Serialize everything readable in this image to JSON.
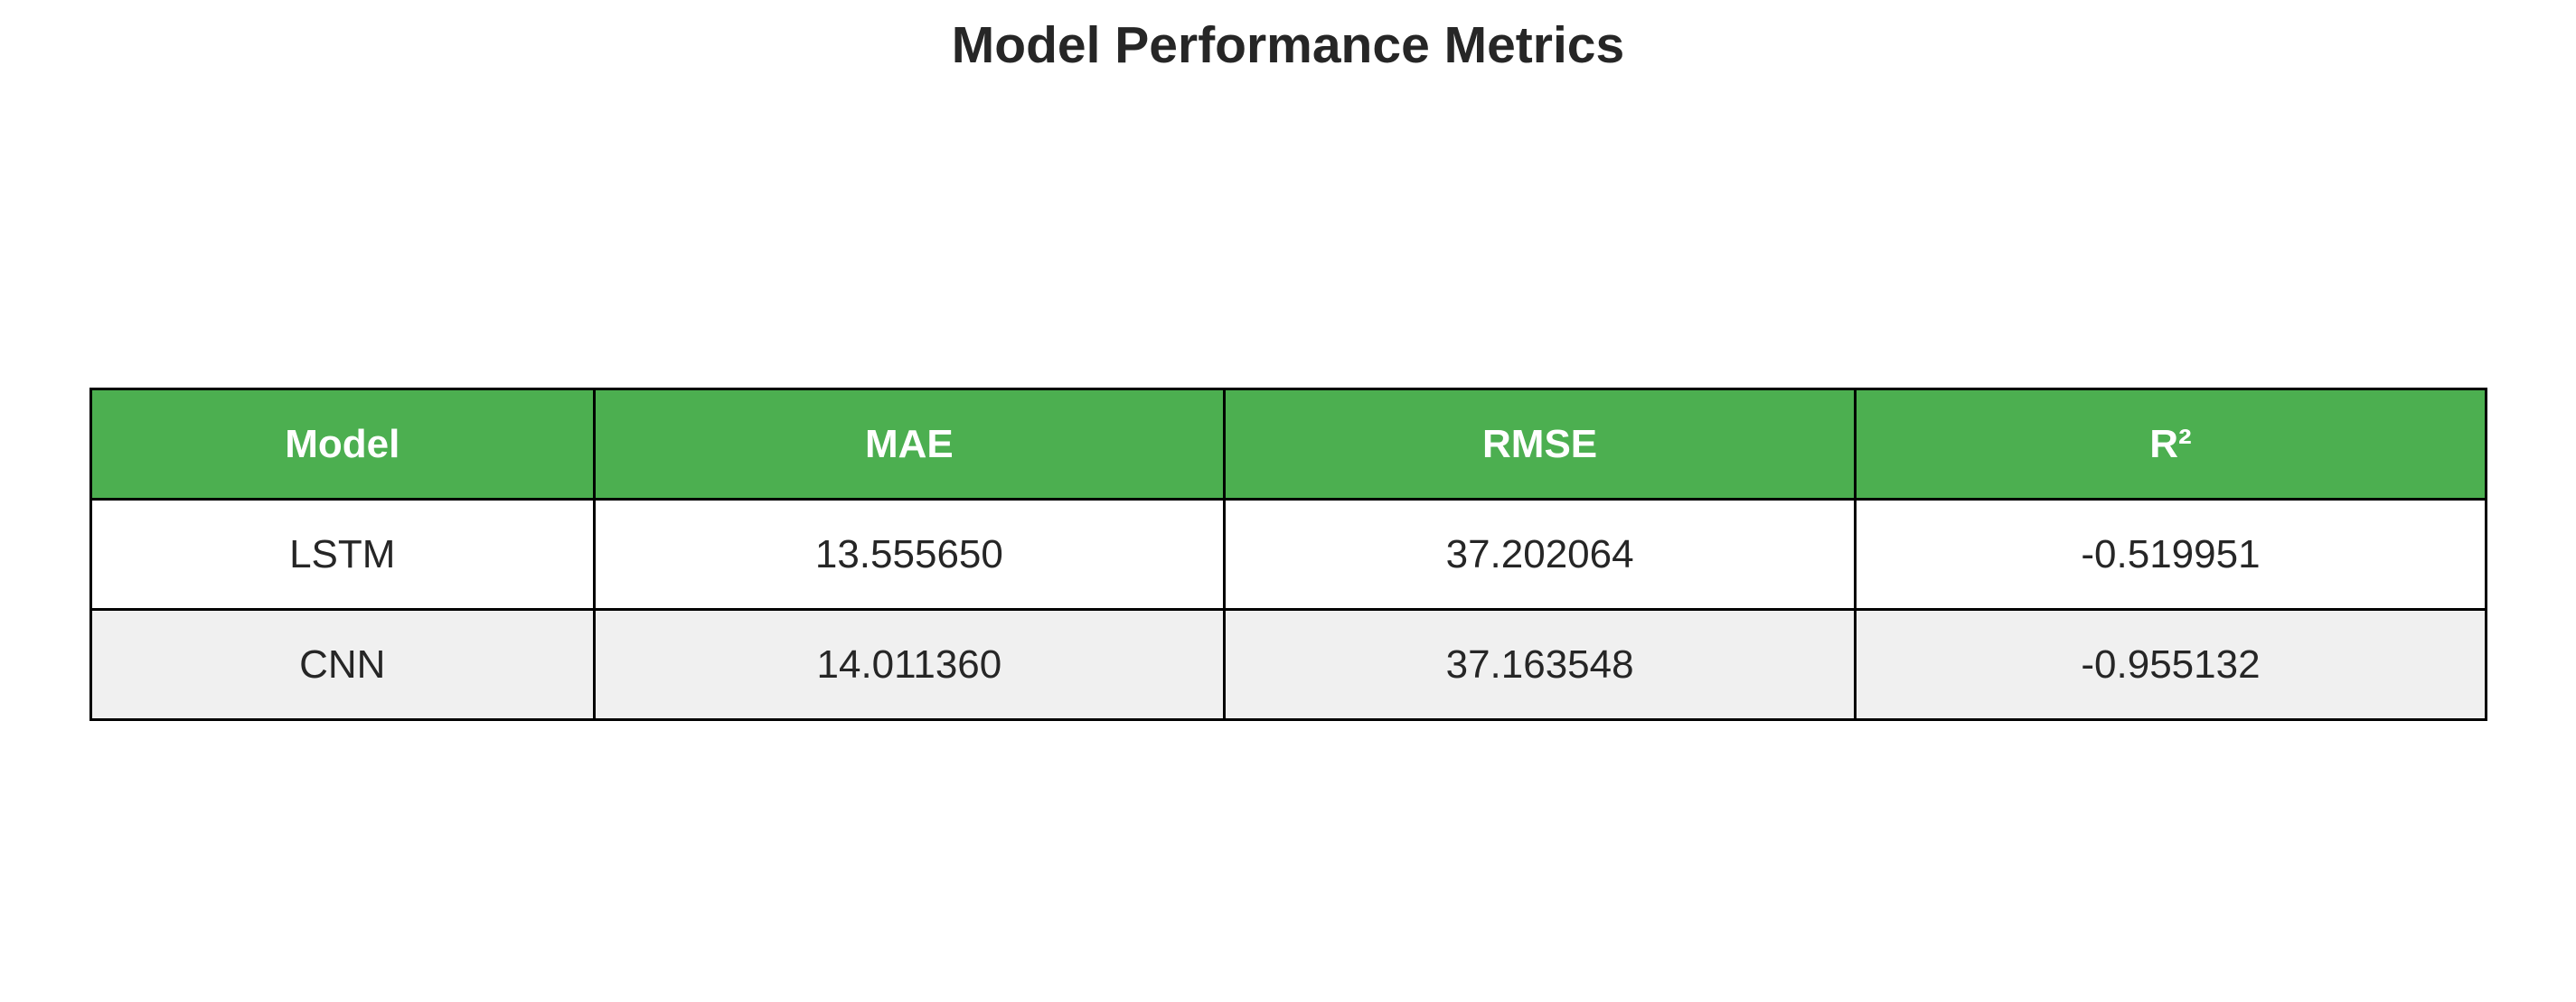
{
  "chart_data": {
    "type": "table",
    "title": "Model Performance Metrics",
    "columns": [
      "Model",
      "MAE",
      "RMSE",
      "R²"
    ],
    "rows": [
      [
        "LSTM",
        "13.555650",
        "37.202064",
        "-0.519951"
      ],
      [
        "CNN",
        "14.011360",
        "37.163548",
        "-0.955132"
      ]
    ],
    "colors": {
      "header_background": "#4caf50",
      "header_text": "#ffffff",
      "row_background": "#ffffff",
      "alt_row_background": "#f0f0f0",
      "border": "#000000"
    }
  }
}
